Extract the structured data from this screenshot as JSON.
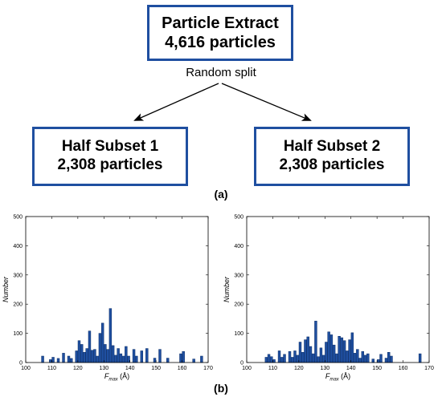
{
  "diagram": {
    "top_box": {
      "line1": "Particle Extract",
      "line2": "4,616 particles"
    },
    "split_label": "Random split",
    "left_box": {
      "line1": "Half Subset 1",
      "line2": "2,308 particles"
    },
    "right_box": {
      "line1": "Half Subset 2",
      "line2": "2,308 particles"
    },
    "caption_a": "(a)",
    "caption_b": "(b)",
    "box_color": "#1f4fa0"
  },
  "chart_data": [
    {
      "type": "bar",
      "xlabel_main": "F",
      "xlabel_sub": "max",
      "xlabel_unit": " (Å)",
      "ylabel": "Number",
      "xlim": [
        100,
        170
      ],
      "ylim": [
        0,
        500
      ],
      "xticks": [
        100,
        110,
        120,
        130,
        140,
        150,
        160,
        170
      ],
      "yticks": [
        0,
        100,
        200,
        300,
        400,
        500
      ],
      "bin_width": 0.9,
      "color": "#1f4fa0",
      "x": [
        106.5,
        109.5,
        110.5,
        112.5,
        114.5,
        116.5,
        117.5,
        119.5,
        120.5,
        121.5,
        122.5,
        123.5,
        124.5,
        125.5,
        126.5,
        127.5,
        128.5,
        129.5,
        130.5,
        131.5,
        132.5,
        133.5,
        134.5,
        135.5,
        136.5,
        137.5,
        138.5,
        139.5,
        141.5,
        142.5,
        144.5,
        146.5,
        149.5,
        151.5,
        154.5,
        159.5,
        160.5,
        164.5,
        167.5
      ],
      "values": [
        22,
        10,
        18,
        14,
        32,
        22,
        14,
        40,
        75,
        62,
        35,
        48,
        108,
        42,
        45,
        22,
        100,
        135,
        62,
        45,
        185,
        58,
        25,
        48,
        30,
        22,
        55,
        22,
        45,
        22,
        40,
        48,
        15,
        45,
        15,
        30,
        38,
        12,
        22
      ]
    },
    {
      "type": "bar",
      "xlabel_main": "F",
      "xlabel_sub": "max",
      "xlabel_unit": " (Å)",
      "ylabel": "Number",
      "xlim": [
        100,
        170
      ],
      "ylim": [
        0,
        500
      ],
      "xticks": [
        100,
        110,
        120,
        130,
        140,
        150,
        160,
        170
      ],
      "yticks": [
        0,
        100,
        200,
        300,
        400,
        500
      ],
      "bin_width": 0.9,
      "color": "#1f4fa0",
      "x": [
        107.5,
        108.5,
        109.5,
        110.5,
        112.5,
        113.5,
        114.5,
        116.5,
        117.5,
        118.5,
        119.5,
        120.5,
        121.5,
        122.5,
        123.5,
        124.5,
        125.5,
        126.5,
        127.5,
        128.5,
        129.5,
        130.5,
        131.5,
        132.5,
        133.5,
        134.5,
        135.5,
        136.5,
        137.5,
        138.5,
        139.5,
        140.5,
        141.5,
        142.5,
        143.5,
        144.5,
        145.5,
        146.5,
        148.5,
        150.5,
        151.5,
        153.5,
        154.5,
        155.5,
        166.5
      ],
      "values": [
        18,
        28,
        20,
        10,
        40,
        18,
        28,
        38,
        18,
        40,
        25,
        70,
        35,
        78,
        88,
        55,
        30,
        142,
        20,
        50,
        25,
        70,
        105,
        95,
        60,
        30,
        90,
        85,
        75,
        40,
        78,
        102,
        32,
        45,
        15,
        38,
        25,
        30,
        12,
        10,
        28,
        15,
        35,
        22,
        30
      ]
    }
  ]
}
